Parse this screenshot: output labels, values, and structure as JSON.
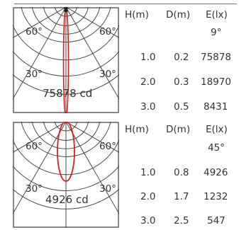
{
  "panels": [
    {
      "angle_labels": {
        "left60": "60°",
        "right60": "60°",
        "left30": "30°",
        "right30": "30°"
      },
      "intensity_label": "75878 cd",
      "table": {
        "headers": [
          "H(m)",
          "D(m)",
          "E(lx)"
        ],
        "beam_angle": "9°",
        "rows": [
          [
            "1.0",
            "0.2",
            "75878"
          ],
          [
            "2.0",
            "0.3",
            "18970"
          ],
          [
            "3.0",
            "0.5",
            "8431"
          ]
        ]
      }
    },
    {
      "angle_labels": {
        "left60": "60°",
        "right60": "60°",
        "left30": "30°",
        "right30": "30°"
      },
      "intensity_label": "4926 cd",
      "table": {
        "headers": [
          "H(m)",
          "D(m)",
          "E(lx)"
        ],
        "beam_angle": "45°",
        "rows": [
          [
            "1.0",
            "0.8",
            "4926"
          ],
          [
            "2.0",
            "1.7",
            "1232"
          ],
          [
            "3.0",
            "2.5",
            "547"
          ]
        ]
      }
    }
  ],
  "colors": {
    "curve": "#d42020",
    "grid": "#3a3a3a"
  }
}
